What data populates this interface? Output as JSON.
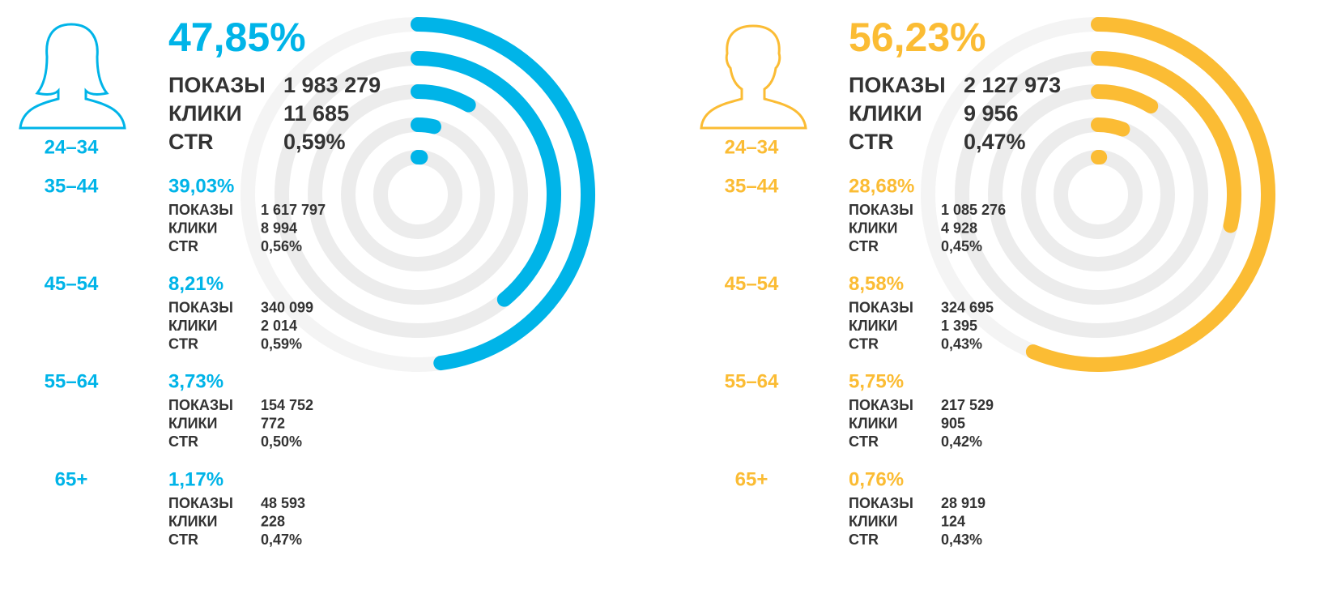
{
  "chart_data": [
    {
      "type": "radial-bar",
      "color": "#00b4e8",
      "ylim": [
        0,
        100
      ],
      "stat_labels": [
        "ПОКАЗЫ",
        "КЛИКИ",
        "CTR"
      ],
      "categories": [
        "24–34",
        "35–44",
        "45–54",
        "55–64",
        "65+"
      ],
      "values": [
        47.85,
        39.03,
        8.21,
        3.73,
        1.17
      ],
      "value_labels": [
        "47,85%",
        "39,03%",
        "8,21%",
        "3,73%",
        "1,17%"
      ],
      "stats": [
        [
          "1 983 279",
          "11 685",
          "0,59%"
        ],
        [
          "1 617 797",
          "8 994",
          "0,56%"
        ],
        [
          "340 099",
          "2 014",
          "0,59%"
        ],
        [
          "154 752",
          "772",
          "0,50%"
        ],
        [
          "48 593",
          "228",
          "0,47%"
        ]
      ]
    },
    {
      "type": "radial-bar",
      "color": "#fbbc34",
      "ylim": [
        0,
        100
      ],
      "stat_labels": [
        "ПОКАЗЫ",
        "КЛИКИ",
        "CTR"
      ],
      "categories": [
        "24–34",
        "35–44",
        "45–54",
        "55–64",
        "65+"
      ],
      "values": [
        56.23,
        28.68,
        8.58,
        5.75,
        0.76
      ],
      "value_labels": [
        "56,23%",
        "28,68%",
        "8,58%",
        "5,75%",
        "0,76%"
      ],
      "stats": [
        [
          "2 127 973",
          "9 956",
          "0,47%"
        ],
        [
          "1 085 276",
          "4 928",
          "0,45%"
        ],
        [
          "324 695",
          "1 395",
          "0,43%"
        ],
        [
          "217 529",
          "905",
          "0,42%"
        ],
        [
          "28 919",
          "124",
          "0,43%"
        ]
      ]
    }
  ]
}
